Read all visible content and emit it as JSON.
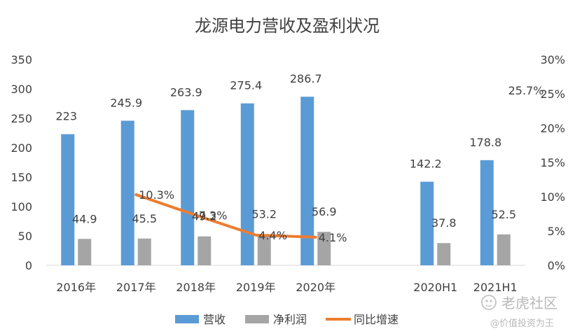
{
  "chart_data": {
    "type": "bar",
    "title": "龙源电力营收及盈利状况",
    "categories": [
      "2016年",
      "2017年",
      "2018年",
      "2019年",
      "2020年",
      "",
      "2020H1",
      "2021H1"
    ],
    "series": [
      {
        "name": "营收",
        "type": "bar",
        "axis": "left",
        "color": "#5b9bd5",
        "values": [
          223,
          245.9,
          263.9,
          275.4,
          286.7,
          null,
          142.2,
          178.8
        ],
        "labels": [
          "223",
          "245.9",
          "263.9",
          "275.4",
          "286.7",
          "",
          "142.2",
          "178.8"
        ]
      },
      {
        "name": "净利润",
        "type": "bar",
        "axis": "left",
        "color": "#a5a5a5",
        "values": [
          44.9,
          45.5,
          49.2,
          53.2,
          56.9,
          null,
          37.8,
          52.5
        ],
        "labels": [
          "44.9",
          "45.5",
          "49.2",
          "53.2",
          "56.9",
          "",
          "37.8",
          "52.5"
        ]
      },
      {
        "name": "同比增速",
        "type": "line",
        "axis": "right",
        "color": "#ed7d31",
        "values": [
          null,
          10.3,
          7.3,
          4.4,
          4.1,
          null,
          null,
          25.7
        ],
        "labels": [
          "",
          "10.3%",
          "7.3%",
          "4.4%",
          "4.1%",
          "",
          "",
          "25.7%"
        ]
      }
    ],
    "y_left": {
      "min": 0,
      "max": 350,
      "ticks": [
        "0",
        "50",
        "100",
        "150",
        "200",
        "250",
        "300",
        "350"
      ]
    },
    "y_right": {
      "min": 0,
      "max": 30,
      "ticks": [
        "0%",
        "5%",
        "10%",
        "15%",
        "20%",
        "25%",
        "30%"
      ]
    },
    "grid": false,
    "legend": "bottom"
  },
  "watermark": {
    "brand": "老虎社区",
    "handle": "@价值投资为王"
  }
}
